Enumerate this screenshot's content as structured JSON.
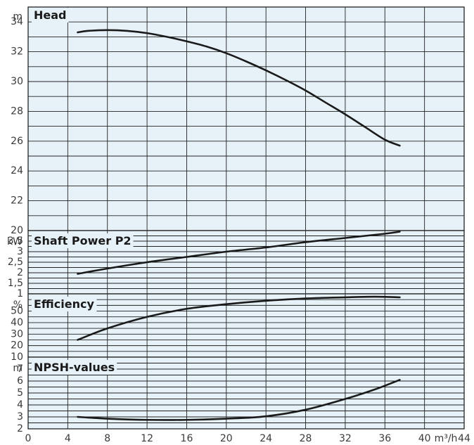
{
  "chart_data": {
    "type": "line",
    "xlabel": "m³/h",
    "x_ticks": [
      "0",
      "4",
      "8",
      "12",
      "16",
      "20",
      "24",
      "28",
      "32",
      "36",
      "40",
      "44"
    ],
    "xlim": [
      0,
      44
    ],
    "grid": true,
    "colors": {
      "panel_bg": "#e6f2f8",
      "grid": "#222222",
      "curve": "#1a1a1a",
      "text": "#3a3a3a"
    },
    "panels": [
      {
        "id": "head",
        "title": "Head",
        "unit": "m",
        "ylim": [
          20,
          35
        ],
        "y_ticks": [
          "20",
          "22",
          "24",
          "26",
          "28",
          "30",
          "32",
          "34"
        ],
        "series": [
          {
            "x": [
              5,
              6,
              8,
              10,
              12,
              14,
              16,
              18,
              20,
              22,
              24,
              26,
              28,
              30,
              32,
              34,
              36,
              37.5
            ],
            "y": [
              33.3,
              33.4,
              33.45,
              33.4,
              33.25,
              33.0,
              32.7,
              32.35,
              31.9,
              31.35,
              30.75,
              30.1,
              29.4,
              28.6,
              27.8,
              26.95,
              26.1,
              25.7
            ]
          }
        ]
      },
      {
        "id": "shaft-power",
        "title": "Shaft Power P2",
        "unit": "kW",
        "ylim": [
          1,
          4
        ],
        "y_ticks": [
          "1",
          "1,5",
          "2",
          "2,5",
          "3",
          "3,5"
        ],
        "series": [
          {
            "x": [
              5,
              8,
              12,
              16,
              20,
              24,
              28,
              32,
              36,
              37.5
            ],
            "y": [
              1.95,
              2.2,
              2.5,
              2.75,
              3.0,
              3.2,
              3.45,
              3.65,
              3.85,
              3.95
            ]
          }
        ]
      },
      {
        "id": "efficiency",
        "title": "Efficiency",
        "unit": "%",
        "ylim": [
          10,
          65
        ],
        "y_ticks": [
          "10",
          "20",
          "30",
          "40",
          "50"
        ],
        "series": [
          {
            "x": [
              5,
              8,
              12,
              16,
              20,
              24,
              28,
              32,
              35,
              37.5
            ],
            "y": [
              25,
              35,
              45,
              52,
              56,
              59,
              61,
              62,
              62.5,
              62
            ]
          }
        ]
      },
      {
        "id": "npsh",
        "title": "NPSH-values",
        "unit": "m",
        "ylim": [
          2,
          8
        ],
        "y_ticks": [
          "2",
          "3",
          "4",
          "5",
          "6",
          "7"
        ],
        "series": [
          {
            "x": [
              5,
              8,
              12,
              16,
              20,
              24,
              28,
              32,
              35,
              37.5
            ],
            "y": [
              3.0,
              2.85,
              2.75,
              2.75,
              2.85,
              3.05,
              3.6,
              4.5,
              5.3,
              6.1
            ]
          }
        ]
      }
    ]
  }
}
